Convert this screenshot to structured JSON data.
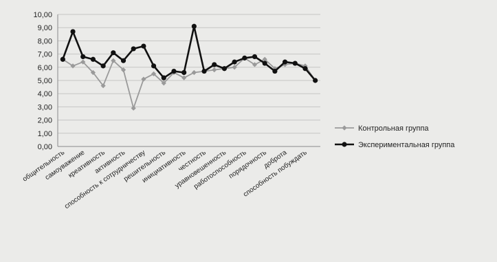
{
  "chart_data": {
    "type": "line",
    "categories": [
      "общительность",
      "",
      "самоуважение",
      "",
      "креативность",
      "",
      "активность",
      "",
      "способность к сотрудничеству",
      "",
      "решительность",
      "",
      "инициативность",
      "",
      "честность",
      "",
      "уравновешенность",
      "",
      "работоспособность",
      "",
      "порядочность",
      "",
      "доброта",
      "",
      "способность побуждать",
      ""
    ],
    "series": [
      {
        "name": "Контрольная группа",
        "color": "#9a9a9a",
        "marker": "diamond",
        "values": [
          6.6,
          6.1,
          6.4,
          5.6,
          4.6,
          6.5,
          5.8,
          2.9,
          5.1,
          5.5,
          4.8,
          5.6,
          5.2,
          5.6,
          5.7,
          5.8,
          5.9,
          6.0,
          6.7,
          6.2,
          6.6,
          5.9,
          6.2,
          6.3,
          6.1,
          5.0
        ]
      },
      {
        "name": "Экспериментальная группа",
        "color": "#111111",
        "marker": "circle",
        "values": [
          6.6,
          8.7,
          6.8,
          6.6,
          6.1,
          7.1,
          6.5,
          7.4,
          7.6,
          6.1,
          5.2,
          5.7,
          5.6,
          9.1,
          5.7,
          6.2,
          5.9,
          6.4,
          6.7,
          6.8,
          6.3,
          5.7,
          6.4,
          6.3,
          5.9,
          5.0
        ]
      }
    ],
    "y_ticks": [
      "0,00",
      "1,00",
      "2,00",
      "3,00",
      "4,00",
      "5,00",
      "6,00",
      "7,00",
      "8,00",
      "9,00",
      "10,00"
    ],
    "ylim": [
      0,
      10
    ],
    "title": "",
    "xlabel": "",
    "ylabel": "",
    "grid": true,
    "legend_position": "right"
  }
}
